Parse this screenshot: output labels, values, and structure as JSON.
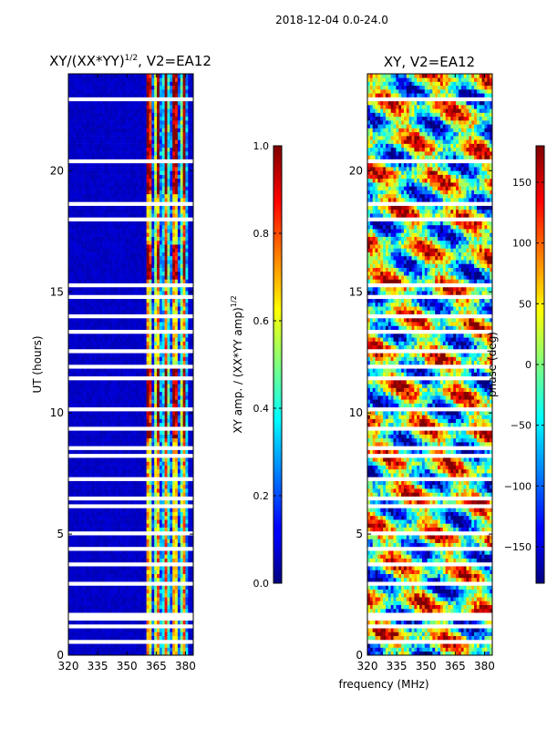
{
  "figure": {
    "suptitle": "2018-12-04 0.0-24.0",
    "xlabel_shared": "frequency (MHz)"
  },
  "chart_data": [
    {
      "type": "heatmap",
      "title": "XY/(XX*YY)",
      "title_sup": "1/2",
      "title_suffix": ", V2=EA12",
      "xlabel": "",
      "ylabel": "UT (hours)",
      "x_ticks": [
        "320",
        "335",
        "350",
        "365",
        "380"
      ],
      "x_tick_values": [
        320,
        335,
        350,
        365,
        380
      ],
      "xlim": [
        320,
        384
      ],
      "y_ticks": [
        "0",
        "5",
        "10",
        "15",
        "20"
      ],
      "y_tick_values": [
        0,
        5,
        10,
        15,
        20
      ],
      "ylim": [
        0,
        24
      ],
      "colormap": "jet",
      "colorbar": {
        "label": "XY amp. / (XX*YY amp)",
        "label_sup": "1/2",
        "ticks": [
          "0.0",
          "0.2",
          "0.4",
          "0.6",
          "0.8",
          "1.0"
        ],
        "tick_values": [
          0.0,
          0.2,
          0.4,
          0.6,
          0.8,
          1.0
        ],
        "range": [
          0.0,
          1.0
        ]
      },
      "high_amplitude_band_MHz": [
        360,
        381
      ],
      "flagged_rows_UT": [
        0.5,
        1.2,
        1.5,
        1.7,
        2.9,
        3.8,
        4.4,
        5.0,
        6.1,
        6.5,
        7.3,
        8.3,
        8.6,
        9.4,
        10.2,
        11.5,
        11.9,
        12.6,
        13.3,
        14.0,
        14.8,
        15.3,
        16.0,
        16.8,
        17.6,
        18.0,
        18.7,
        19.2,
        20.4,
        22.4,
        22.9
      ]
    },
    {
      "type": "heatmap",
      "title": "XY, V2=EA12",
      "xlabel": "",
      "ylabel": "",
      "x_ticks": [
        "320",
        "335",
        "350",
        "365",
        "380"
      ],
      "x_tick_values": [
        320,
        335,
        350,
        365,
        380
      ],
      "xlim": [
        320,
        384
      ],
      "y_ticks": [
        "0",
        "5",
        "10",
        "15",
        "20"
      ],
      "y_tick_values": [
        0,
        5,
        10,
        15,
        20
      ],
      "ylim": [
        0,
        24
      ],
      "colormap": "jet",
      "colorbar": {
        "label": "phase (deg)",
        "ticks": [
          "−150",
          "−100",
          "−50",
          "0",
          "50",
          "100",
          "150"
        ],
        "tick_values": [
          -150,
          -100,
          -50,
          0,
          50,
          100,
          150
        ],
        "range": [
          -180,
          180
        ]
      },
      "flagged_rows_UT": [
        0.5,
        1.2,
        1.5,
        1.7,
        2.9,
        3.8,
        4.4,
        5.0,
        6.1,
        6.5,
        7.3,
        8.3,
        8.6,
        9.4,
        10.2,
        11.5,
        11.9,
        12.6,
        13.3,
        14.0,
        14.8,
        15.3,
        16.0,
        16.8,
        17.6,
        18.0,
        18.7,
        19.2,
        20.4,
        22.4,
        22.9
      ]
    }
  ]
}
